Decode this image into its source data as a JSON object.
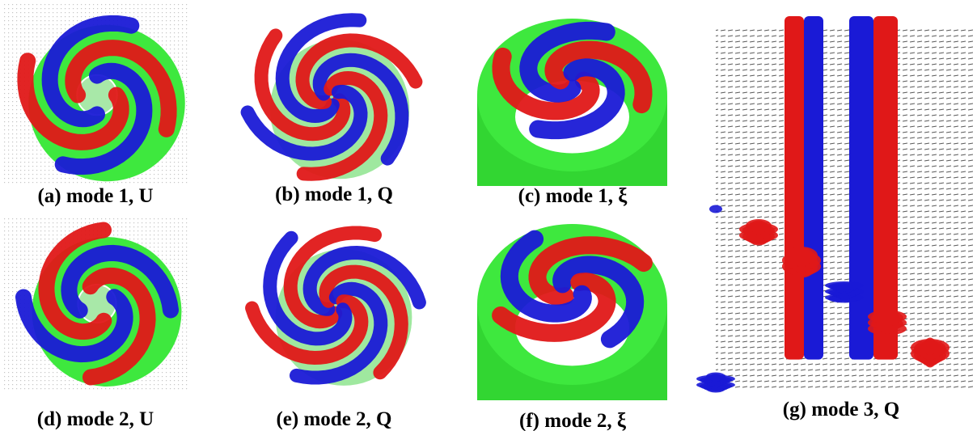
{
  "panels": [
    {
      "caption": "(a) mode 1, U"
    },
    {
      "caption": "(b) mode 1, Q"
    },
    {
      "caption": "(c) mode 1, ξ"
    },
    {
      "caption": "(d) mode 2, U"
    },
    {
      "caption": "(e) mode 2, Q"
    },
    {
      "caption": "(f) mode 2, ξ"
    },
    {
      "caption": "(g) mode 3, Q"
    }
  ]
}
